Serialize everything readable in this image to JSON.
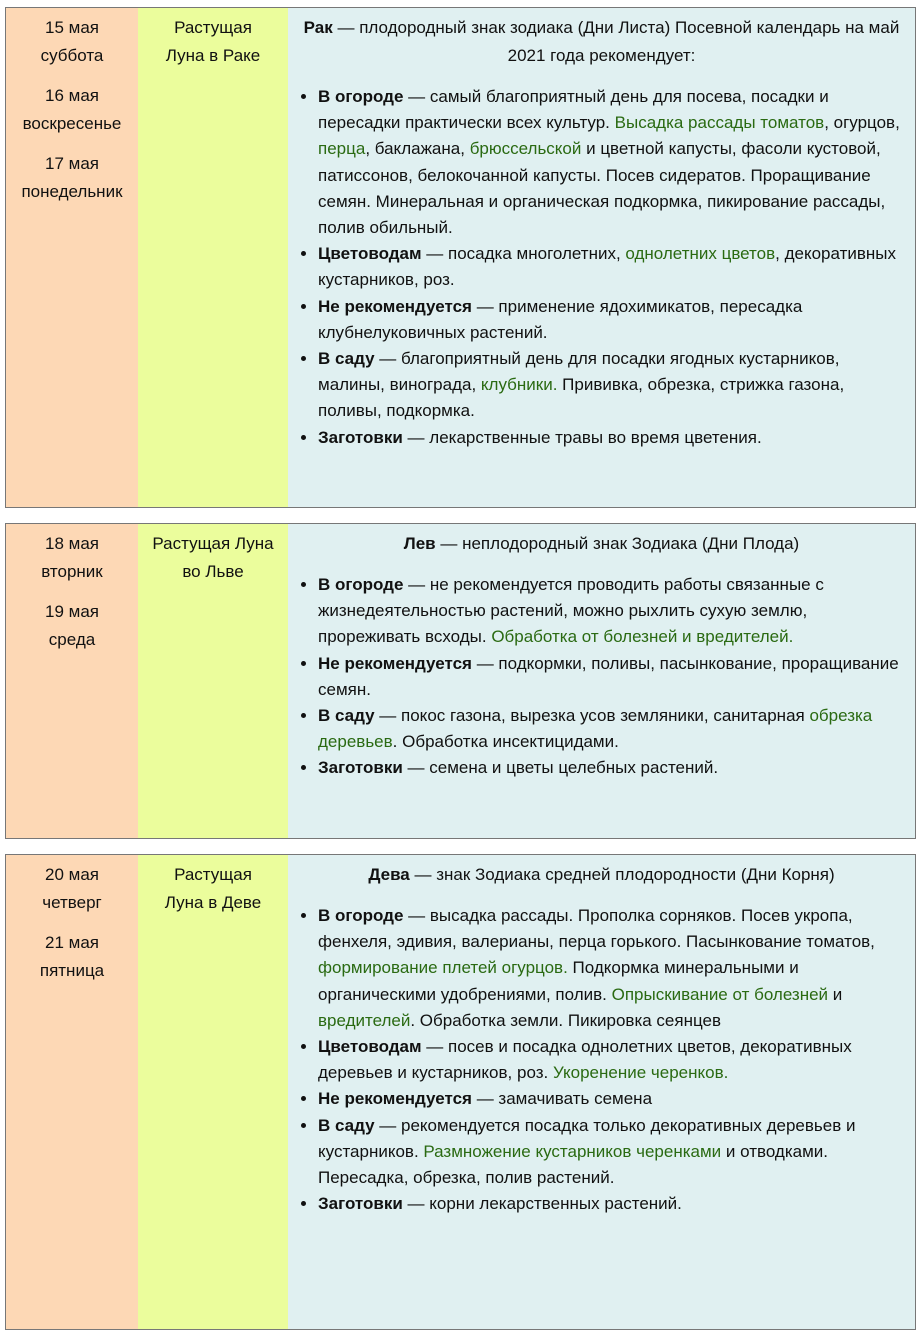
{
  "tables": [
    {
      "days": [
        [
          "15 мая",
          "суббота"
        ],
        [
          "16 мая",
          "воскресенье"
        ],
        [
          "17 мая",
          "понедельник"
        ]
      ],
      "moon": [
        "Растущая",
        "Луна в Раке"
      ],
      "head": [
        {
          "t": "Рак",
          "b": true
        },
        {
          "t": " — плодородный знак зодиака (Дни Листа) Посевной календарь на май 2021 года рекомендует:"
        }
      ],
      "items": [
        [
          {
            "t": "В огороде",
            "b": true
          },
          {
            "t": " — самый благоприятный день для посева, посадки и пересадки практически всех культур. "
          },
          {
            "t": "Высадка рассады томатов",
            "g": true
          },
          {
            "t": ", огурцов, "
          },
          {
            "t": "перца",
            "g": true
          },
          {
            "t": ", баклажана, "
          },
          {
            "t": "брюссельской",
            "g": true
          },
          {
            "t": " и цветной капусты, фасоли кустовой, патиссонов, белокочанной капусты. Посев сидератов. Проращивание семян. Минеральная и органическая подкормка, пикирование рассады, полив обильный."
          }
        ],
        [
          {
            "t": "Цветоводам",
            "b": true
          },
          {
            "t": " — посадка многолетних, "
          },
          {
            "t": "однолетних цветов",
            "g": true
          },
          {
            "t": ", декоративных кустарников, роз."
          }
        ],
        [
          {
            "t": "Не рекомендуется",
            "b": true
          },
          {
            "t": " — применение ядохимикатов, пересадка клубнелуковичных растений."
          }
        ],
        [
          {
            "t": "В саду",
            "b": true
          },
          {
            "t": " — благоприятный день для посадки ягодных кустарников, малины, винограда, "
          },
          {
            "t": "клубники.",
            "g": true
          },
          {
            "t": " Прививка, обрезка, стрижка газона, поливы, подкормка."
          }
        ],
        [
          {
            "t": "Заготовки",
            "b": true
          },
          {
            "t": " — лекарственные травы во время цветения."
          }
        ]
      ]
    },
    {
      "days": [
        [
          "18 мая",
          "вторник"
        ],
        [
          "19 мая",
          "среда"
        ]
      ],
      "moon": [
        "Растущая Луна",
        "во Льве"
      ],
      "head": [
        {
          "t": "Лев",
          "b": true
        },
        {
          "t": " — неплодородный знак Зодиака (Дни Плода)"
        }
      ],
      "items": [
        [
          {
            "t": "В огороде",
            "b": true
          },
          {
            "t": " — не рекомендуется проводить работы связанные с жизнедеятельностью растений, можно рыхлить сухую землю, прореживать всходы. "
          },
          {
            "t": "Обработка от болезней и вредителей.",
            "g": true
          }
        ],
        [
          {
            "t": "Не рекомендуется",
            "b": true
          },
          {
            "t": " — подкормки, поливы, пасынкование, проращивание семян."
          }
        ],
        [
          {
            "t": "В саду",
            "b": true
          },
          {
            "t": " — покос газона, вырезка усов земляники, санитарная "
          },
          {
            "t": "обрезка деревьев",
            "g": true
          },
          {
            "t": ". Обработка инсектицидами."
          }
        ],
        [
          {
            "t": "Заготовки",
            "b": true
          },
          {
            "t": " — семена и цветы целебных растений."
          }
        ]
      ]
    },
    {
      "days": [
        [
          "20 мая",
          "четверг"
        ],
        [
          "21 мая",
          "пятница"
        ]
      ],
      "moon": [
        "Растущая",
        "Луна в Деве"
      ],
      "head": [
        {
          "t": "Дева",
          "b": true
        },
        {
          "t": " — знак Зодиака средней плодородности (Дни Корня)"
        }
      ],
      "items": [
        [
          {
            "t": "В огороде",
            "b": true
          },
          {
            "t": " — высадка рассады. Прополка сорняков. Посев укропа, фенхеля, эдивия, валерианы, перца горького. Пасынкование томатов, "
          },
          {
            "t": "формирование плетей огурцов.",
            "g": true
          },
          {
            "t": " Подкормка минеральными и органическими удобрениями, полив.  "
          },
          {
            "t": "Опрыскивание от болезней",
            "g": true
          },
          {
            "t": " и "
          },
          {
            "t": "вредителей",
            "g": true
          },
          {
            "t": ". Обработка земли. Пикировка сеянцев"
          }
        ],
        [
          {
            "t": "Цветоводам",
            "b": true
          },
          {
            "t": " — посев и посадка однолетних цветов, декоративных деревьев и кустарников, роз. "
          },
          {
            "t": "Укоренение черенков.",
            "g": true
          }
        ],
        [
          {
            "t": "Не рекомендуется",
            "b": true
          },
          {
            "t": " — замачивать семена"
          }
        ],
        [
          {
            "t": "В саду",
            "b": true
          },
          {
            "t": " — рекомендуется посадка только декоративных деревьев и кустарников. "
          },
          {
            "t": "Размножение кустарников черенками",
            "g": true
          },
          {
            "t": " и отводками. Пересадка, обрезка, полив растений."
          }
        ],
        [
          {
            "t": "Заготовки",
            "b": true
          },
          {
            "t": " — корни лекарственных растений."
          }
        ]
      ]
    }
  ],
  "colors": {
    "date_col": "#fdd8b5",
    "moon_col": "#ebfd9c",
    "text_col": "#e0f0f1",
    "link": "#2a6a12"
  }
}
